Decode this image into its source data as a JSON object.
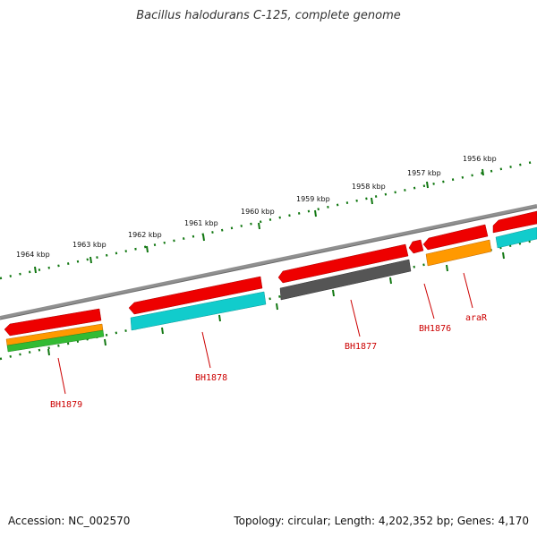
{
  "title": "Bacillus halodurans C-125, complete genome",
  "footer": {
    "accession": "Accession: NC_002570",
    "summary": "Topology: circular; Length: 4,202,352 bp; Genes: 4,170"
  },
  "scale_labels": [
    "1956 kbp",
    "1957 kbp",
    "1958 kbp",
    "1959 kbp",
    "1960 kbp",
    "1961 kbp",
    "1962 kbp",
    "1963 kbp",
    "1964 kbp"
  ],
  "gene_labels": [
    "araR",
    "BH1876",
    "BH1877",
    "BH1878",
    "BH1879"
  ],
  "colors": {
    "gene_red": "#ee0000",
    "cds_cyan": "#11cccc",
    "cds_orange": "#ff9900",
    "cds_gray": "#555555",
    "cds_green": "#33bb33",
    "backbone": "#808080",
    "ticks": "#117711",
    "label_red": "#cc0000"
  }
}
